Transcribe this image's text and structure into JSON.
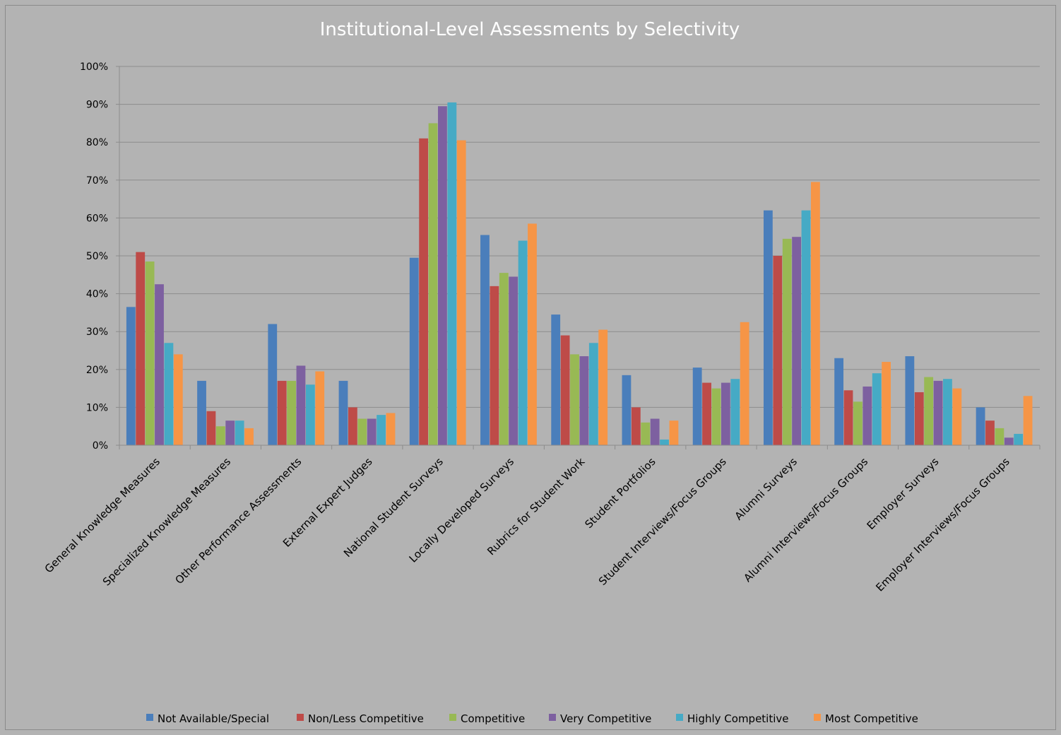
{
  "chart_data": {
    "type": "bar",
    "title": "Institutional-Level Assessments by Selectivity",
    "xlabel": "",
    "ylabel": "",
    "ylim": [
      0,
      100
    ],
    "y_ticks": [
      "0%",
      "10%",
      "20%",
      "30%",
      "40%",
      "50%",
      "60%",
      "70%",
      "80%",
      "90%",
      "100%"
    ],
    "grid": true,
    "legend_position": "bottom",
    "categories": [
      "General Knowledge Measures",
      "Specialized Knowledge Measures",
      "Other Performance Assessments",
      "External Expert Judges",
      "National Student Surveys",
      "Locally Developed Surveys",
      "Rubrics for Student Work",
      "Student Portfolios",
      "Student Interviews/Focus Groups",
      "Alumni Surveys",
      "Alumni Interviews/Focus Groups",
      "Employer Surveys",
      "Employer Interviews/Focus Groups"
    ],
    "series": [
      {
        "name": "Not Available/Special",
        "color": "#4a7ebb",
        "values": [
          36.5,
          17,
          32,
          17,
          49.5,
          55.5,
          34.5,
          18.5,
          20.5,
          62,
          23,
          23.5,
          10
        ]
      },
      {
        "name": "Non/Less Competitive",
        "color": "#be4b48",
        "values": [
          51,
          9,
          17,
          10,
          81,
          42,
          29,
          10,
          16.5,
          50,
          14.5,
          14,
          6.5
        ]
      },
      {
        "name": "Competitive",
        "color": "#98b954",
        "values": [
          48.5,
          5,
          17,
          7,
          85,
          45.5,
          24,
          6,
          15,
          54.5,
          11.5,
          18,
          4.5
        ]
      },
      {
        "name": "Very Competitive",
        "color": "#7d60a0",
        "values": [
          42.5,
          6.5,
          21,
          7,
          89.5,
          44.5,
          23.5,
          7,
          16.5,
          55,
          15.5,
          17,
          2
        ]
      },
      {
        "name": "Highly Competitive",
        "color": "#46aac5",
        "values": [
          27,
          6.5,
          16,
          8,
          90.5,
          54,
          27,
          1.5,
          17.5,
          62,
          19,
          17.5,
          3
        ]
      },
      {
        "name": "Most Competitive",
        "color": "#f69546",
        "values": [
          24,
          4.5,
          19.5,
          8.5,
          80.5,
          58.5,
          30.5,
          6.5,
          32.5,
          69.5,
          22,
          15,
          13
        ]
      }
    ]
  }
}
